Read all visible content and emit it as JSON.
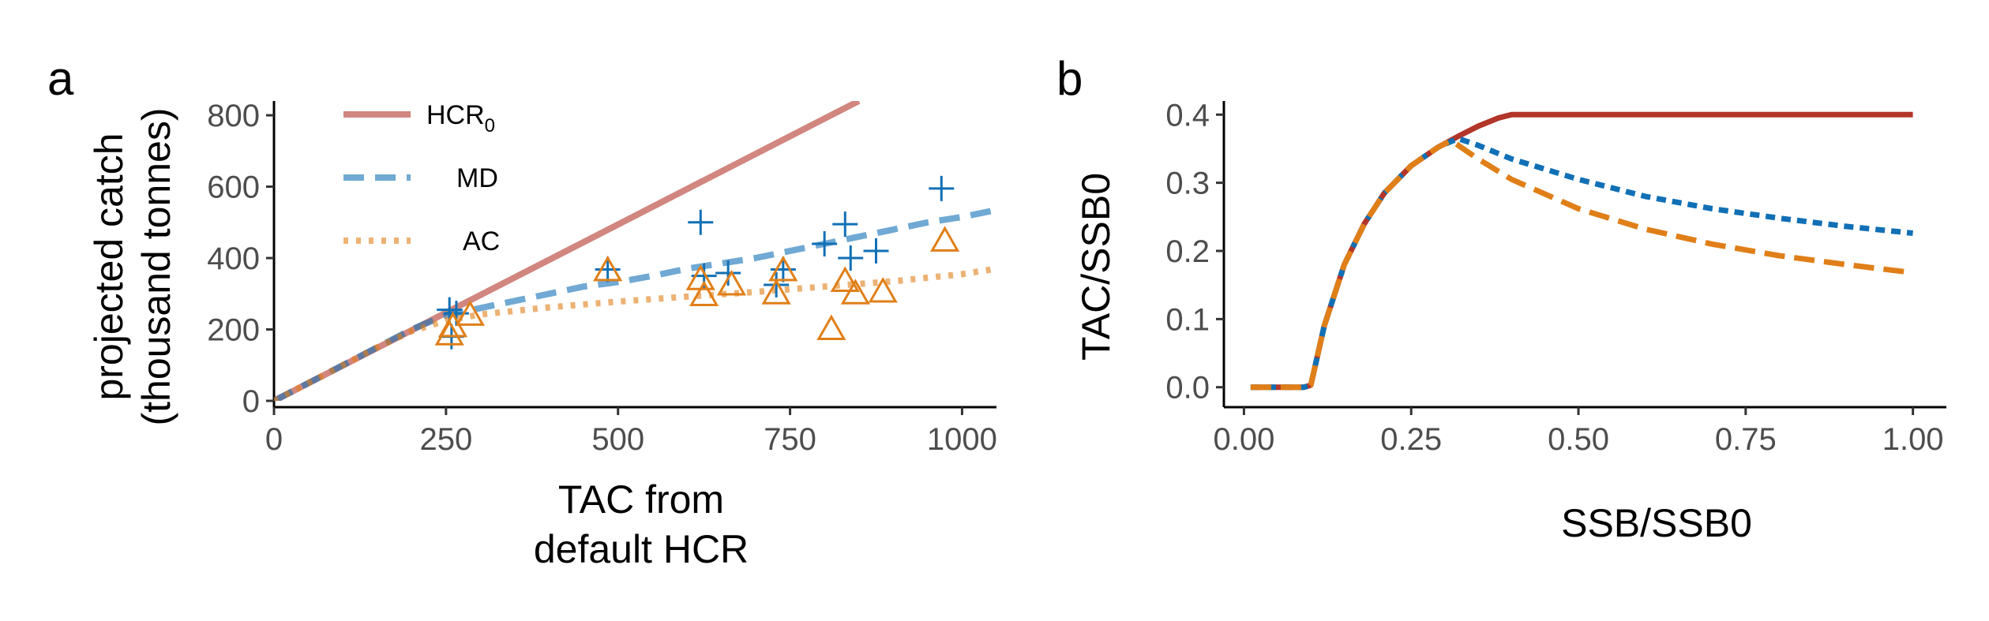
{
  "colors": {
    "hcr0": "#b2352a",
    "md": "#1170b5",
    "ac": "#e07f18",
    "axis": "#000000",
    "tick_text": "#4d4d4d"
  },
  "chart_data": [
    {
      "panel_label": "a",
      "type": "line",
      "xlabel": [
        "TAC from",
        "default HCR"
      ],
      "ylabel": [
        "projected catch",
        "(thousand tonnes)"
      ],
      "xlim": [
        0,
        1050
      ],
      "ylim": [
        0,
        840
      ],
      "xticks": [
        0,
        250,
        500,
        750,
        1000
      ],
      "yticks": [
        0,
        200,
        400,
        600,
        800
      ],
      "grid": false,
      "legend_position": "top-left",
      "legend": [
        {
          "key": "HCR0",
          "label_main": "HCR",
          "label_sub": "0",
          "dash": "solid"
        },
        {
          "key": "MD",
          "label_main": "MD",
          "label_sub": "",
          "dash": "dashed"
        },
        {
          "key": "AC",
          "label_main": "AC",
          "label_sub": "",
          "dash": "dotted"
        }
      ],
      "series": [
        {
          "name": "HCR0",
          "key": "HCR0",
          "x": [
            0,
            850
          ],
          "y": [
            0,
            840
          ]
        },
        {
          "name": "MD",
          "key": "MD",
          "x": [
            0,
            50,
            100,
            150,
            200,
            250,
            300,
            350,
            400,
            450,
            500,
            550,
            600,
            650,
            700,
            750,
            800,
            850,
            900,
            950,
            1000,
            1050
          ],
          "y": [
            0,
            50,
            100,
            150,
            200,
            240,
            260,
            280,
            300,
            320,
            333,
            350,
            370,
            385,
            400,
            420,
            440,
            460,
            480,
            500,
            515,
            535
          ]
        },
        {
          "name": "AC",
          "key": "AC",
          "x": [
            0,
            50,
            100,
            150,
            200,
            250,
            300,
            400,
            500,
            600,
            700,
            800,
            900,
            1000,
            1050
          ],
          "y": [
            0,
            50,
            100,
            150,
            195,
            225,
            242,
            262,
            278,
            292,
            305,
            320,
            335,
            355,
            370
          ]
        }
      ],
      "points": {
        "MD_plus": [
          [
            255,
            255
          ],
          [
            258,
            180
          ],
          [
            265,
            245
          ],
          [
            485,
            368
          ],
          [
            620,
            500
          ],
          [
            625,
            350
          ],
          [
            660,
            358
          ],
          [
            730,
            325
          ],
          [
            740,
            368
          ],
          [
            800,
            440
          ],
          [
            830,
            495
          ],
          [
            838,
            400
          ],
          [
            875,
            420
          ],
          [
            970,
            595
          ]
        ],
        "AC_triangle": [
          [
            255,
            185
          ],
          [
            260,
            208
          ],
          [
            285,
            240
          ],
          [
            485,
            365
          ],
          [
            620,
            340
          ],
          [
            625,
            295
          ],
          [
            665,
            325
          ],
          [
            730,
            300
          ],
          [
            740,
            365
          ],
          [
            810,
            200
          ],
          [
            830,
            335
          ],
          [
            845,
            300
          ],
          [
            885,
            305
          ],
          [
            975,
            448
          ]
        ]
      }
    },
    {
      "panel_label": "b",
      "type": "line",
      "xlabel": [
        "SSB/SSB0"
      ],
      "ylabel": [
        "TAC/SSB0"
      ],
      "xlim": [
        -0.03,
        1.05
      ],
      "ylim": [
        -0.02,
        0.42
      ],
      "xticks": [
        0.0,
        0.25,
        0.5,
        0.75,
        1.0
      ],
      "xtick_labels": [
        "0.00",
        "0.25",
        "0.50",
        "0.75",
        "1.00"
      ],
      "yticks": [
        0.0,
        0.1,
        0.2,
        0.3,
        0.4
      ],
      "ytick_labels": [
        "0.0",
        "0.1",
        "0.2",
        "0.3",
        "0.4"
      ],
      "grid": false,
      "series": [
        {
          "key": "HCR0",
          "dash": "solid",
          "x": [
            0.01,
            0.09,
            0.1,
            0.12,
            0.15,
            0.18,
            0.21,
            0.25,
            0.29,
            0.32,
            0.35,
            0.38,
            0.4,
            1.0
          ],
          "y": [
            0.0,
            0.0,
            0.003,
            0.09,
            0.18,
            0.24,
            0.285,
            0.325,
            0.352,
            0.368,
            0.383,
            0.395,
            0.4,
            0.4
          ]
        },
        {
          "key": "MD",
          "dash": "dotted",
          "x": [
            0.01,
            0.09,
            0.1,
            0.12,
            0.15,
            0.18,
            0.21,
            0.25,
            0.29,
            0.32,
            0.35,
            0.4,
            0.5,
            0.6,
            0.7,
            0.8,
            0.9,
            1.0
          ],
          "y": [
            0.0,
            0.0,
            0.003,
            0.09,
            0.18,
            0.24,
            0.285,
            0.325,
            0.352,
            0.365,
            0.355,
            0.335,
            0.305,
            0.28,
            0.262,
            0.248,
            0.236,
            0.226
          ]
        },
        {
          "key": "AC",
          "dash": "dashed",
          "x": [
            0.01,
            0.09,
            0.1,
            0.12,
            0.15,
            0.18,
            0.21,
            0.25,
            0.29,
            0.31,
            0.35,
            0.4,
            0.5,
            0.6,
            0.7,
            0.8,
            0.9,
            1.0
          ],
          "y": [
            0.0,
            0.0,
            0.003,
            0.09,
            0.18,
            0.24,
            0.285,
            0.325,
            0.352,
            0.362,
            0.335,
            0.305,
            0.262,
            0.232,
            0.21,
            0.193,
            0.18,
            0.168
          ]
        }
      ]
    }
  ]
}
